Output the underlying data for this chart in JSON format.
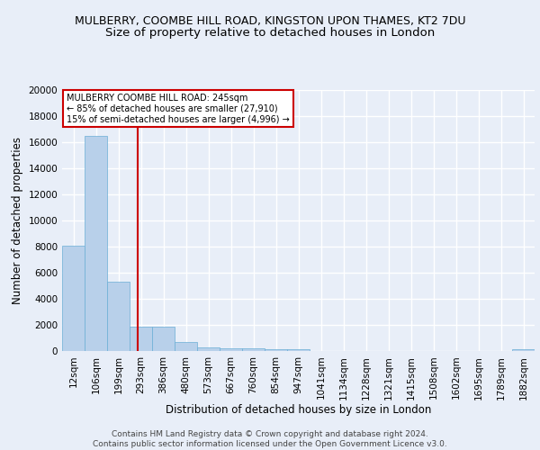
{
  "title1": "MULBERRY, COOMBE HILL ROAD, KINGSTON UPON THAMES, KT2 7DU",
  "title2": "Size of property relative to detached houses in London",
  "xlabel": "Distribution of detached houses by size in London",
  "ylabel": "Number of detached properties",
  "categories": [
    "12sqm",
    "106sqm",
    "199sqm",
    "293sqm",
    "386sqm",
    "480sqm",
    "573sqm",
    "667sqm",
    "760sqm",
    "854sqm",
    "947sqm",
    "1041sqm",
    "1134sqm",
    "1228sqm",
    "1321sqm",
    "1415sqm",
    "1508sqm",
    "1602sqm",
    "1695sqm",
    "1789sqm",
    "1882sqm"
  ],
  "values": [
    8100,
    16500,
    5300,
    1850,
    1850,
    700,
    310,
    220,
    190,
    150,
    130,
    0,
    0,
    0,
    0,
    0,
    0,
    0,
    0,
    0,
    150
  ],
  "bar_color": "#b8d0ea",
  "bar_edge_color": "#6aaed6",
  "vline_x": 2.85,
  "vline_color": "#cc0000",
  "annotation_text": "MULBERRY COOMBE HILL ROAD: 245sqm\n← 85% of detached houses are smaller (27,910)\n15% of semi-detached houses are larger (4,996) →",
  "annotation_box_color": "#ffffff",
  "annotation_box_edge": "#cc0000",
  "ylim": [
    0,
    20000
  ],
  "yticks": [
    0,
    2000,
    4000,
    6000,
    8000,
    10000,
    12000,
    14000,
    16000,
    18000,
    20000
  ],
  "footer": "Contains HM Land Registry data © Crown copyright and database right 2024.\nContains public sector information licensed under the Open Government Licence v3.0.",
  "bg_color": "#e8eef8",
  "plot_bg_color": "#e8eef8",
  "grid_color": "#ffffff",
  "title1_fontsize": 9.0,
  "title2_fontsize": 9.5,
  "axis_label_fontsize": 8.5,
  "tick_fontsize": 7.5,
  "footer_fontsize": 6.5
}
